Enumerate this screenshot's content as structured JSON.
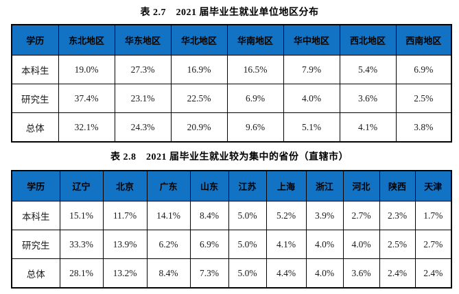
{
  "colors": {
    "page_bg": "#ffffff",
    "header_bg": "#1273c4",
    "header_text": "#000000",
    "border": "#000000",
    "body_text": "#1a1a1a"
  },
  "tables": [
    {
      "title": "表 2.7　2021 届毕业生就业单位地区分布",
      "columns": [
        "学历",
        "东北地区",
        "华东地区",
        "华北地区",
        "华南地区",
        "华中地区",
        "西北地区",
        "西南地区"
      ],
      "rows": [
        [
          "本科生",
          "19.0%",
          "27.3%",
          "16.9%",
          "16.5%",
          "7.9%",
          "5.4%",
          "6.9%"
        ],
        [
          "研究生",
          "37.4%",
          "23.1%",
          "22.5%",
          "6.9%",
          "4.0%",
          "3.6%",
          "2.5%"
        ],
        [
          "总体",
          "32.1%",
          "24.3%",
          "20.9%",
          "9.6%",
          "5.1%",
          "4.1%",
          "3.8%"
        ]
      ]
    },
    {
      "title": "表 2.8　2021 届毕业生就业较为集中的省份（直辖市）",
      "columns": [
        "学历",
        "辽宁",
        "北京",
        "广东",
        "山东",
        "江苏",
        "上海",
        "浙江",
        "河北",
        "陕西",
        "天津"
      ],
      "rows": [
        [
          "本科生",
          "15.1%",
          "11.7%",
          "14.1%",
          "8.4%",
          "5.0%",
          "5.2%",
          "3.9%",
          "2.7%",
          "2.3%",
          "1.7%"
        ],
        [
          "研究生",
          "33.3%",
          "13.9%",
          "6.2%",
          "6.9%",
          "5.0%",
          "4.1%",
          "4.0%",
          "4.0%",
          "2.5%",
          "2.7%"
        ],
        [
          "总体",
          "28.1%",
          "13.2%",
          "8.4%",
          "7.3%",
          "5.0%",
          "4.4%",
          "4.0%",
          "3.6%",
          "2.4%",
          "2.4%"
        ]
      ]
    }
  ]
}
